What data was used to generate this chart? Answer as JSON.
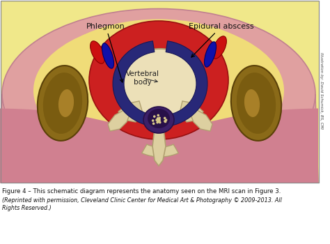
{
  "bg_color": "#ffffff",
  "caption_line1": "Figure 4 – This schematic diagram represents the anatomy seen on the MRI scan in Figure 3.",
  "caption_line2": "(Reprinted with permission, Cleveland Clinic Center for Medical Art & Photography © 2009-2013. All",
  "caption_line3": "Rights Reserved.)",
  "label_phlegmon": "Phlegmon",
  "label_epidural": "Epidural abscess",
  "label_vertebral": "Vertebral\nbody",
  "side_text": "Illustration by: David Schumick, BS, CMI",
  "colors": {
    "img_bg": "#f0e88a",
    "skin_pink": "#e0a0a0",
    "skin_dark_pink": "#d08090",
    "muscle_pink": "#c87888",
    "muscle_line": "#b06878",
    "fat_yellow": "#f0dc78",
    "fat_yellow2": "#e8d060",
    "kidney_dark": "#7a5c10",
    "kidney_mid": "#8a6a18",
    "kidney_light": "#a88028",
    "kidney_outline": "#5a4008",
    "epidural_red": "#cc2020",
    "epidural_dark": "#991010",
    "phlegmon_blue": "#282878",
    "phlegmon_dark": "#181858",
    "vertebra_beige": "#ddd0a0",
    "vertebra_light": "#ece0b8",
    "vertebra_outline": "#b0a070",
    "spinal_purple": "#3c2068",
    "spinal_dark": "#281048",
    "nerve_dots": "#d8c888",
    "vessel_red": "#cc1010",
    "vessel_blue": "#1010aa",
    "vessel_blue2": "#3030cc",
    "text_dark": "#111111",
    "outline_dark": "#444444",
    "skin_outline": "#c08090"
  }
}
